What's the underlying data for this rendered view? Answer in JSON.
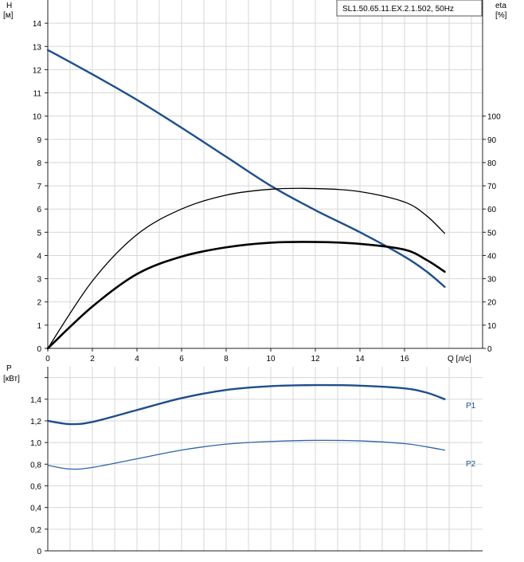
{
  "chart_data": [
    {
      "type": "line",
      "title": "SL1.50.65.11.EX.2.1.502, 50Hz",
      "ylabel": "H",
      "yunit": "[м]",
      "ylabel_right": "eta",
      "yunit_right": "[%]",
      "xlabel": "Q [л/с]",
      "xlim": [
        0,
        19.5
      ],
      "ylim": [
        0,
        15
      ],
      "ylim_right": [
        0,
        150
      ],
      "x_ticks": [
        0,
        2,
        4,
        6,
        8,
        10,
        12,
        14,
        16
      ],
      "y_ticks": [
        0,
        1,
        2,
        3,
        4,
        5,
        6,
        7,
        8,
        9,
        10,
        11,
        12,
        13,
        14
      ],
      "y_right_ticks": [
        0,
        10,
        20,
        30,
        40,
        50,
        60,
        70,
        80,
        90,
        100
      ],
      "grid": true,
      "series": [
        {
          "axis": "left",
          "color": "#1f4e8c",
          "x": [
            0,
            2,
            4,
            6,
            8,
            10,
            12,
            14,
            16,
            17,
            17.8
          ],
          "y": [
            12.85,
            11.8,
            10.7,
            9.5,
            8.25,
            7.0,
            5.95,
            5.0,
            3.95,
            3.3,
            2.65
          ]
        },
        {
          "axis": "right",
          "color": "#000000",
          "x": [
            0,
            2,
            4,
            6,
            8,
            10,
            12,
            14,
            16,
            17,
            17.8
          ],
          "y": [
            0,
            29,
            49,
            60,
            66,
            68.5,
            68.8,
            67.5,
            63,
            57,
            49.5
          ]
        },
        {
          "axis": "right",
          "color": "#000000",
          "x": [
            0,
            2,
            4,
            6,
            8,
            10,
            12,
            14,
            16,
            17,
            17.8
          ],
          "y": [
            0,
            18,
            32,
            39.5,
            43.5,
            45.5,
            45.8,
            45,
            42.5,
            38,
            33
          ]
        }
      ]
    },
    {
      "type": "line",
      "ylabel": "P",
      "yunit": "[кВт]",
      "xlim": [
        0,
        19.5
      ],
      "ylim": [
        0,
        1.7
      ],
      "y_ticks": [
        0,
        0.2,
        0.4,
        0.6,
        0.8,
        1.0,
        1.2,
        1.4
      ],
      "y_tick_labels": [
        "0",
        "0,2",
        "0,4",
        "0,6",
        "0,8",
        "1,0",
        "1,2",
        "1,4"
      ],
      "grid": true,
      "series": [
        {
          "name": "P1",
          "color": "#1f4e8c",
          "x": [
            0,
            1,
            2,
            4,
            6,
            8,
            10,
            12,
            14,
            16,
            17,
            17.8
          ],
          "y": [
            1.2,
            1.17,
            1.19,
            1.3,
            1.41,
            1.485,
            1.52,
            1.53,
            1.525,
            1.5,
            1.46,
            1.4
          ]
        },
        {
          "name": "P2",
          "color": "#2e64a6",
          "x": [
            0,
            1,
            2,
            4,
            6,
            8,
            10,
            12,
            14,
            16,
            17,
            17.8
          ],
          "y": [
            0.79,
            0.755,
            0.77,
            0.85,
            0.93,
            0.985,
            1.01,
            1.02,
            1.015,
            0.99,
            0.96,
            0.93
          ]
        }
      ]
    }
  ]
}
